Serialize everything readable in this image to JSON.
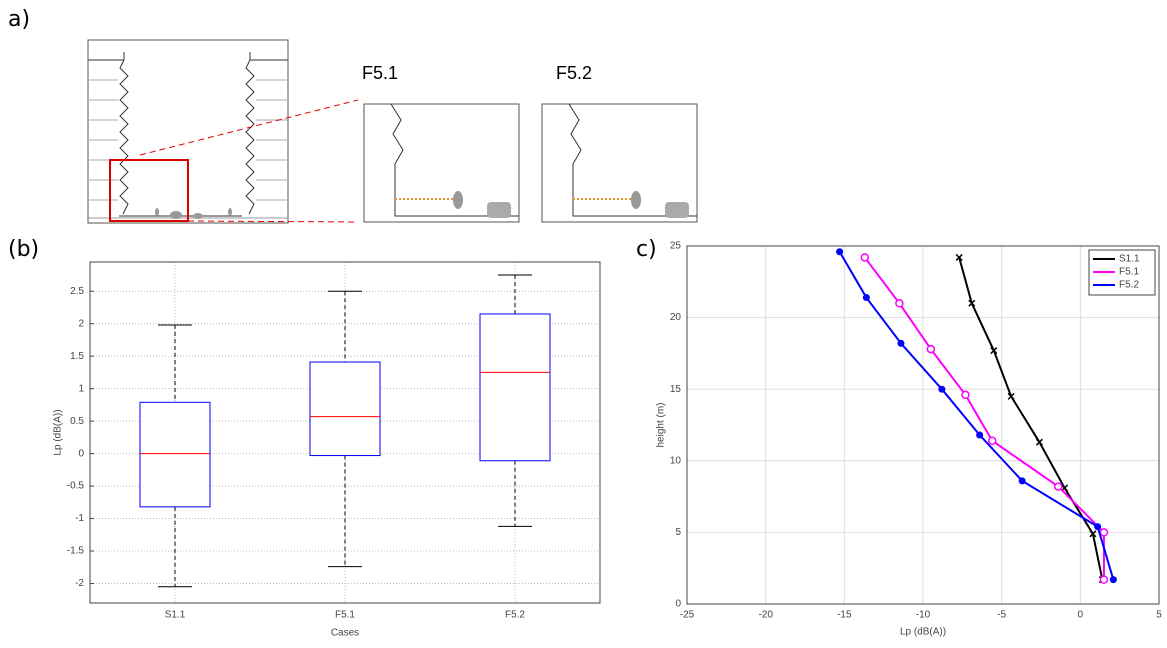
{
  "panels": {
    "a": "a)",
    "b": "(b)",
    "c": "c)",
    "zoom_1": "F5.1",
    "zoom_2": "F5.2"
  },
  "chart_data": [
    {
      "type": "box",
      "xlabel": "Cases",
      "ylabel": "Lp (dB(A))",
      "categories": [
        "S1.1",
        "F5.1",
        "F5.2"
      ],
      "whisker_low": [
        -2.05,
        -1.74,
        -1.12
      ],
      "q1": [
        -0.82,
        -0.03,
        -0.11
      ],
      "median": [
        0,
        0.57,
        1.25
      ],
      "q3": [
        0.79,
        1.41,
        2.15
      ],
      "whisker_high": [
        1.98,
        2.5,
        2.75
      ],
      "box_color": "#0000ff",
      "median_color": "#ff0000",
      "ylim": [
        -2.3,
        2.95
      ],
      "yticks": [
        -2,
        -1.5,
        -1,
        -0.5,
        0,
        0.5,
        1,
        1.5,
        2,
        2.5
      ],
      "grid": true
    },
    {
      "type": "line",
      "xlabel": "Lp (dB(A))",
      "ylabel": "height (m)",
      "xlim": [
        -25,
        5
      ],
      "xticks": [
        -25,
        -20,
        -15,
        -10,
        -5,
        0,
        5
      ],
      "ylim": [
        0,
        25
      ],
      "yticks": [
        0,
        5,
        10,
        15,
        20,
        25
      ],
      "grid": true,
      "legend": "upper-right",
      "series": [
        {
          "name": "S1.1",
          "color": "#000000",
          "marker": "x",
          "x": [
            -7.7,
            -6.9,
            -5.5,
            -4.4,
            -2.6,
            -1.0,
            0.8,
            1.4
          ],
          "values": [
            24.2,
            21,
            17.7,
            14.5,
            11.3,
            8.1,
            4.9,
            1.7
          ]
        },
        {
          "name": "F5.1",
          "color": "#ff00ff",
          "marker": "circle",
          "x": [
            -13.7,
            -11.5,
            -9.5,
            -7.3,
            -5.6,
            -1.4,
            1.5,
            1.5
          ],
          "values": [
            24.2,
            21,
            17.8,
            14.6,
            11.4,
            8.2,
            5.0,
            1.7
          ]
        },
        {
          "name": "F5.2",
          "color": "#0000ff",
          "marker": "dot",
          "x": [
            -15.3,
            -13.6,
            -11.4,
            -8.8,
            -6.4,
            -3.7,
            1.1,
            2.1
          ],
          "values": [
            24.6,
            21.4,
            18.2,
            15.0,
            11.8,
            8.6,
            5.4,
            1.7
          ]
        }
      ]
    }
  ]
}
